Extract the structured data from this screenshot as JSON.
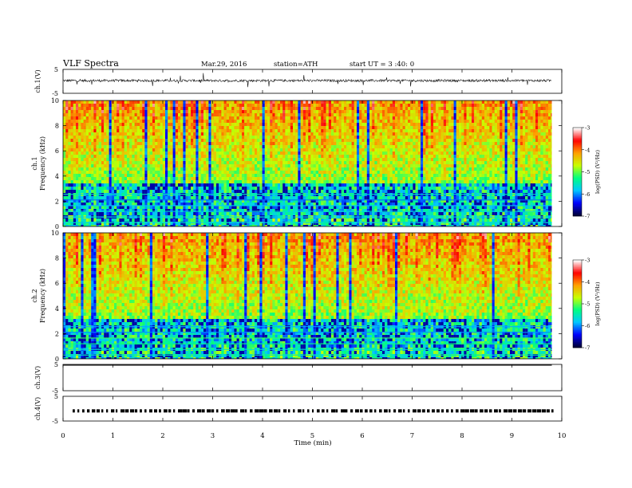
{
  "header": {
    "title": "VLF  Spectra",
    "date": "Mar.29, 2016",
    "station": "station=ATH",
    "start": "start  UT  =   3 :40: 0"
  },
  "chart_data": [
    {
      "type": "line",
      "name": "ch1-waveform",
      "ylabel": "ch.1(V)",
      "ylim": [
        -5,
        5
      ],
      "ytick_labels": [
        "5",
        "-5"
      ],
      "baseline": 0.3,
      "noise_amplitude": 0.5,
      "spike_amplitude": 3.0
    },
    {
      "type": "heatmap",
      "name": "ch1-spectrogram",
      "ylabel": "ch.1\nFrequency  (kHz)",
      "ylim": [
        0,
        10
      ],
      "yticks": [
        0,
        2,
        4,
        6,
        8,
        10
      ],
      "colorbar": {
        "label": "log(PSD) (V²/Hz)",
        "range": [
          -7,
          -3
        ],
        "ticks": [
          -3,
          -4,
          -5,
          -6,
          -7
        ]
      },
      "low_band_top_khz": 3.5
    },
    {
      "type": "heatmap",
      "name": "ch2-spectrogram",
      "ylabel": "ch.2\nFrequency  (kHz)",
      "ylim": [
        0,
        10
      ],
      "yticks": [
        0,
        2,
        4,
        6,
        8,
        10
      ],
      "colorbar": {
        "label": "log(PSD) (V²/Hz)",
        "range": [
          -7,
          -3
        ],
        "ticks": [
          -3,
          -4,
          -5,
          -6,
          -7
        ]
      },
      "low_band_top_khz": 3.2
    },
    {
      "type": "line",
      "name": "ch3-waveform",
      "ylabel": "ch.3(V)",
      "ylim": [
        -5,
        5
      ],
      "ytick_labels": [
        "5",
        "-5"
      ],
      "flat_at": 5
    },
    {
      "type": "line",
      "name": "ch4-waveform",
      "ylabel": "ch.4(V)",
      "ylim": [
        -5,
        5
      ],
      "ytick_labels": [
        "5",
        "-5"
      ],
      "baseline": -0.9
    }
  ],
  "xaxis": {
    "label": "Time  (min)",
    "range": [
      0,
      10
    ],
    "data_extent": 9.8,
    "ticks": [
      0,
      1,
      2,
      3,
      4,
      5,
      6,
      7,
      8,
      9,
      10
    ]
  },
  "colors": {
    "colormap": [
      "#00003a",
      "#0000ff",
      "#00c8ff",
      "#00ff80",
      "#c8ff00",
      "#ffa000",
      "#ff0000",
      "#ffffff"
    ]
  }
}
